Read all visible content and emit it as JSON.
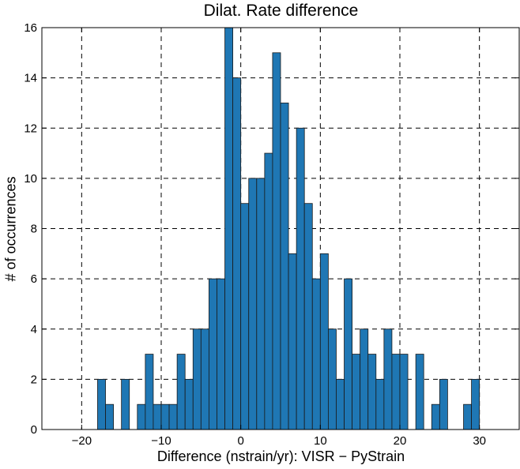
{
  "chart_data": {
    "type": "bar",
    "title": "Dilat. Rate difference",
    "xlabel": "Difference (nstrain/yr): VISR − PyStrain",
    "ylabel": "# of occurrences",
    "xlim": [
      -25,
      35
    ],
    "ylim": [
      0,
      16
    ],
    "xticks": [
      -20,
      -10,
      0,
      10,
      20,
      30
    ],
    "xtick_labels": [
      "−20",
      "−10",
      "0",
      "10",
      "20",
      "30"
    ],
    "yticks": [
      0,
      2,
      4,
      6,
      8,
      10,
      12,
      14,
      16
    ],
    "ytick_labels": [
      "0",
      "2",
      "4",
      "6",
      "8",
      "10",
      "12",
      "14",
      "16"
    ],
    "grid": true,
    "bar_color": "#1f77b4",
    "bins": [
      {
        "start": -18.0,
        "end": -17.0,
        "count": 2
      },
      {
        "start": -17.0,
        "end": -16.0,
        "count": 1
      },
      {
        "start": -15.0,
        "end": -14.0,
        "count": 2
      },
      {
        "start": -13.0,
        "end": -12.0,
        "count": 1
      },
      {
        "start": -12.0,
        "end": -11.0,
        "count": 3
      },
      {
        "start": -11.0,
        "end": -10.0,
        "count": 1
      },
      {
        "start": -10.0,
        "end": -9.0,
        "count": 1
      },
      {
        "start": -9.0,
        "end": -8.0,
        "count": 1
      },
      {
        "start": -8.0,
        "end": -7.0,
        "count": 3
      },
      {
        "start": -7.0,
        "end": -6.0,
        "count": 2
      },
      {
        "start": -6.0,
        "end": -5.0,
        "count": 4
      },
      {
        "start": -5.0,
        "end": -4.0,
        "count": 4
      },
      {
        "start": -4.0,
        "end": -3.0,
        "count": 6
      },
      {
        "start": -3.0,
        "end": -2.0,
        "count": 6
      },
      {
        "start": -2.0,
        "end": -1.0,
        "count": 16
      },
      {
        "start": -1.0,
        "end": 0.0,
        "count": 14
      },
      {
        "start": 0.0,
        "end": 1.0,
        "count": 9
      },
      {
        "start": 1.0,
        "end": 2.0,
        "count": 10
      },
      {
        "start": 2.0,
        "end": 3.0,
        "count": 10
      },
      {
        "start": 3.0,
        "end": 4.0,
        "count": 11
      },
      {
        "start": 4.0,
        "end": 5.0,
        "count": 15
      },
      {
        "start": 5.0,
        "end": 6.0,
        "count": 13
      },
      {
        "start": 6.0,
        "end": 7.0,
        "count": 7
      },
      {
        "start": 7.0,
        "end": 8.0,
        "count": 12
      },
      {
        "start": 8.0,
        "end": 9.0,
        "count": 9
      },
      {
        "start": 9.0,
        "end": 10.0,
        "count": 6
      },
      {
        "start": 10.0,
        "end": 11.0,
        "count": 7
      },
      {
        "start": 11.0,
        "end": 12.0,
        "count": 4
      },
      {
        "start": 12.0,
        "end": 13.0,
        "count": 2
      },
      {
        "start": 13.0,
        "end": 14.0,
        "count": 6
      },
      {
        "start": 14.0,
        "end": 15.0,
        "count": 3
      },
      {
        "start": 15.0,
        "end": 16.0,
        "count": 4
      },
      {
        "start": 16.0,
        "end": 17.0,
        "count": 3
      },
      {
        "start": 17.0,
        "end": 18.0,
        "count": 2
      },
      {
        "start": 18.0,
        "end": 19.0,
        "count": 4
      },
      {
        "start": 19.0,
        "end": 20.0,
        "count": 3
      },
      {
        "start": 20.0,
        "end": 21.0,
        "count": 3
      },
      {
        "start": 22.0,
        "end": 23.0,
        "count": 3
      },
      {
        "start": 24.0,
        "end": 25.0,
        "count": 1
      },
      {
        "start": 25.0,
        "end": 26.0,
        "count": 2
      },
      {
        "start": 28.0,
        "end": 29.0,
        "count": 1
      },
      {
        "start": 29.0,
        "end": 30.0,
        "count": 2
      }
    ]
  }
}
